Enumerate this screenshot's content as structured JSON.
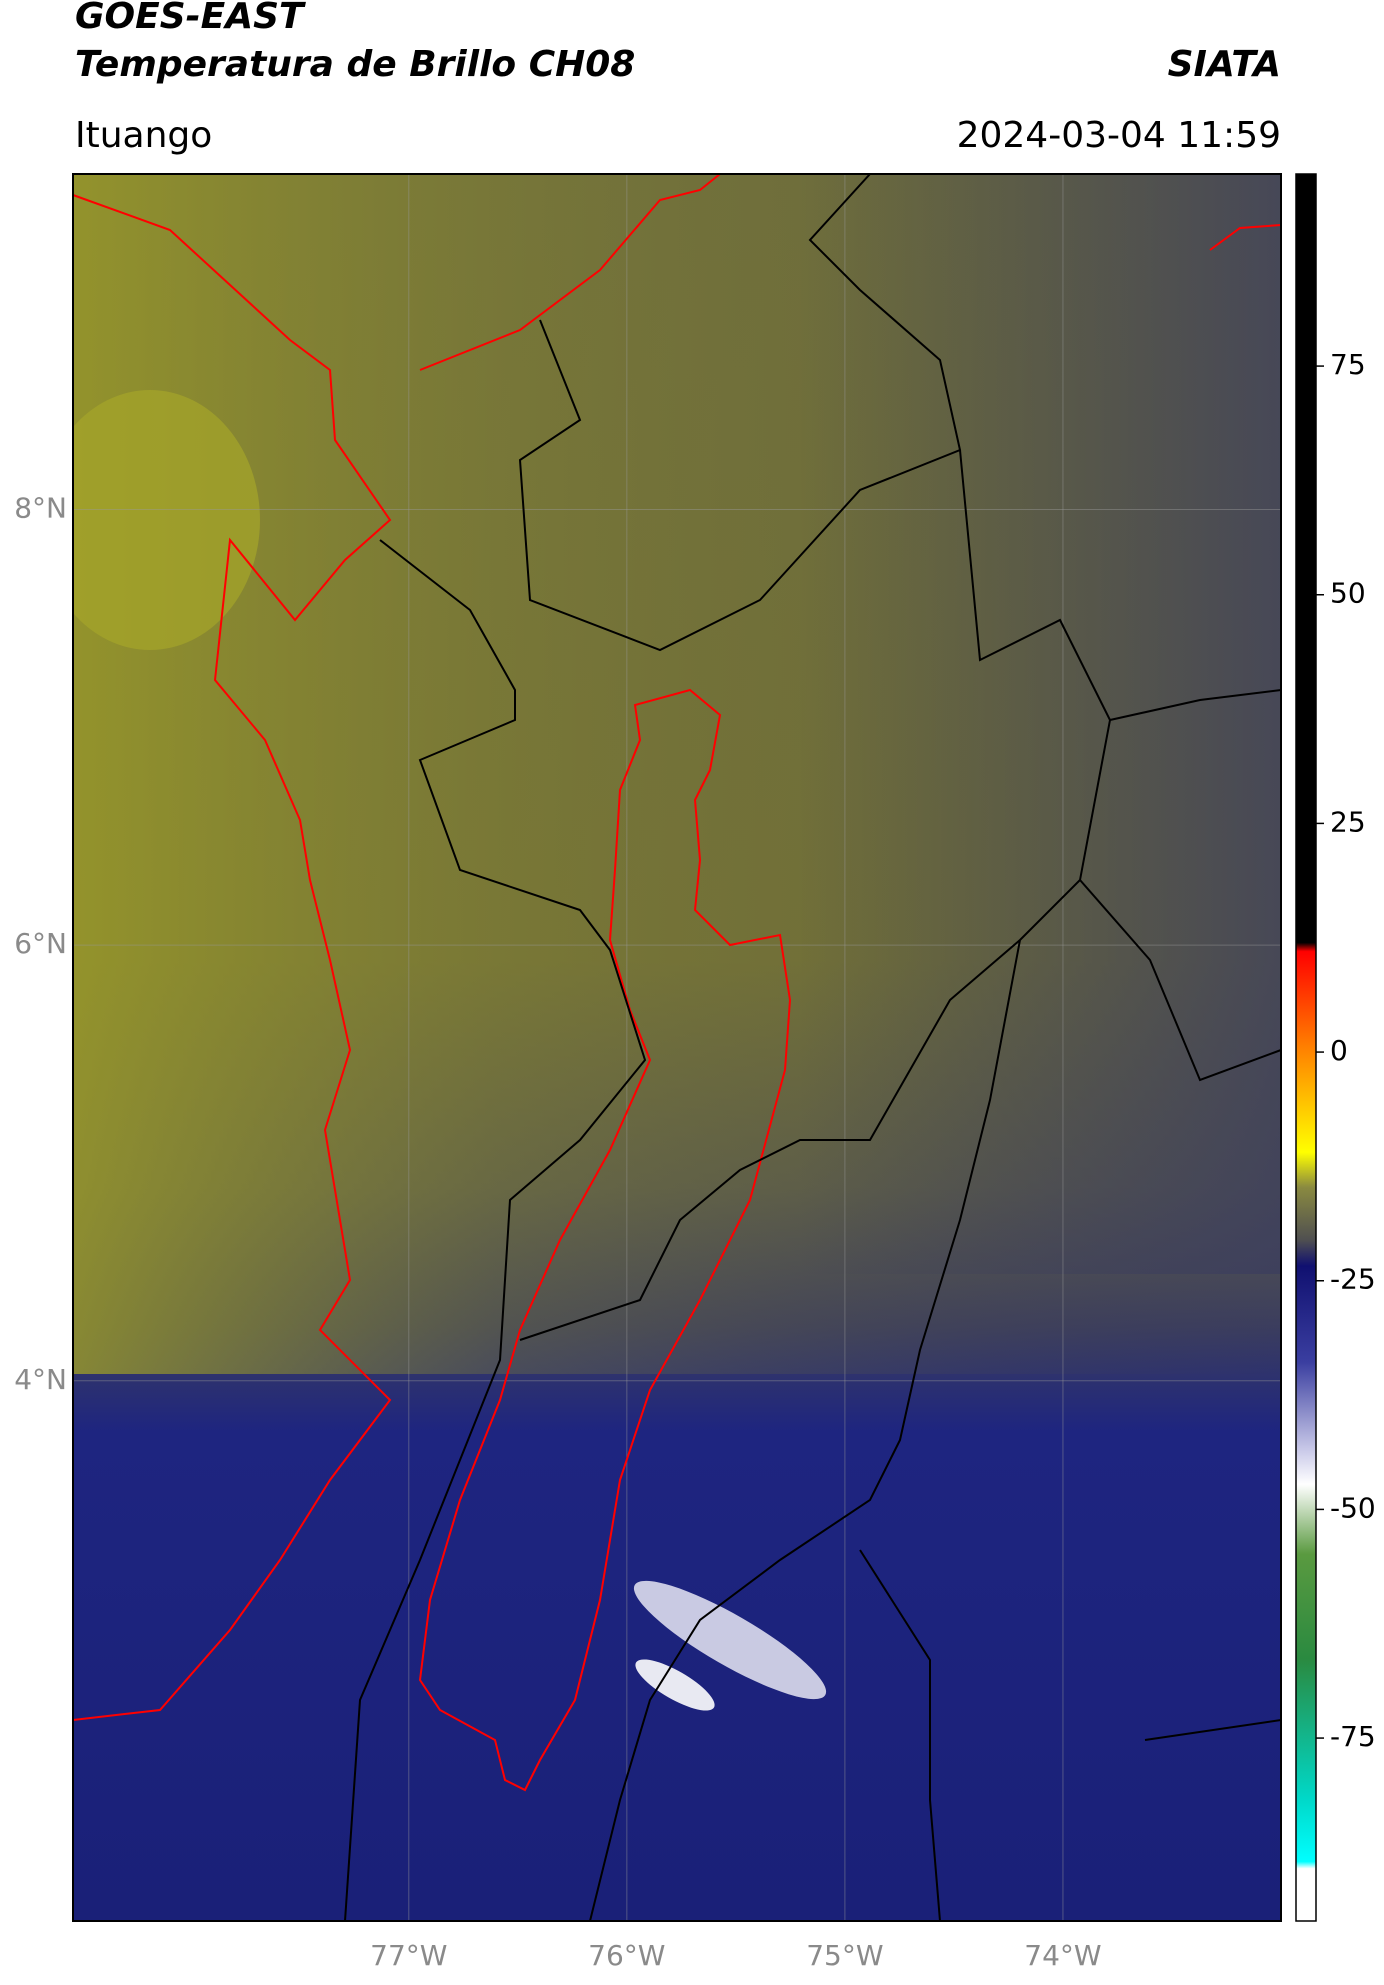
{
  "header": {
    "title": "GOES-EAST",
    "subtitle": "Temperatura de Brillo CH08",
    "source": "SIATA",
    "region": "Ituango",
    "timestamp": "2024-03-04 11:59"
  },
  "map": {
    "lonlim": [
      -78.54,
      -73.0
    ],
    "latlim": [
      1.52,
      9.54
    ],
    "lonticks": [
      {
        "value": -77,
        "label": "77°W"
      },
      {
        "value": -76,
        "label": "76°W"
      },
      {
        "value": -75,
        "label": "75°W"
      },
      {
        "value": -74,
        "label": "74°W"
      }
    ],
    "latticks": [
      {
        "value": 8,
        "label": "8°N"
      },
      {
        "value": 6,
        "label": "6°N"
      },
      {
        "value": 4,
        "label": "4°N"
      }
    ]
  },
  "colorbar": {
    "lim": [
      -95,
      96
    ],
    "ticks": [
      75,
      50,
      25,
      0,
      -25,
      -50,
      -75
    ]
  }
}
